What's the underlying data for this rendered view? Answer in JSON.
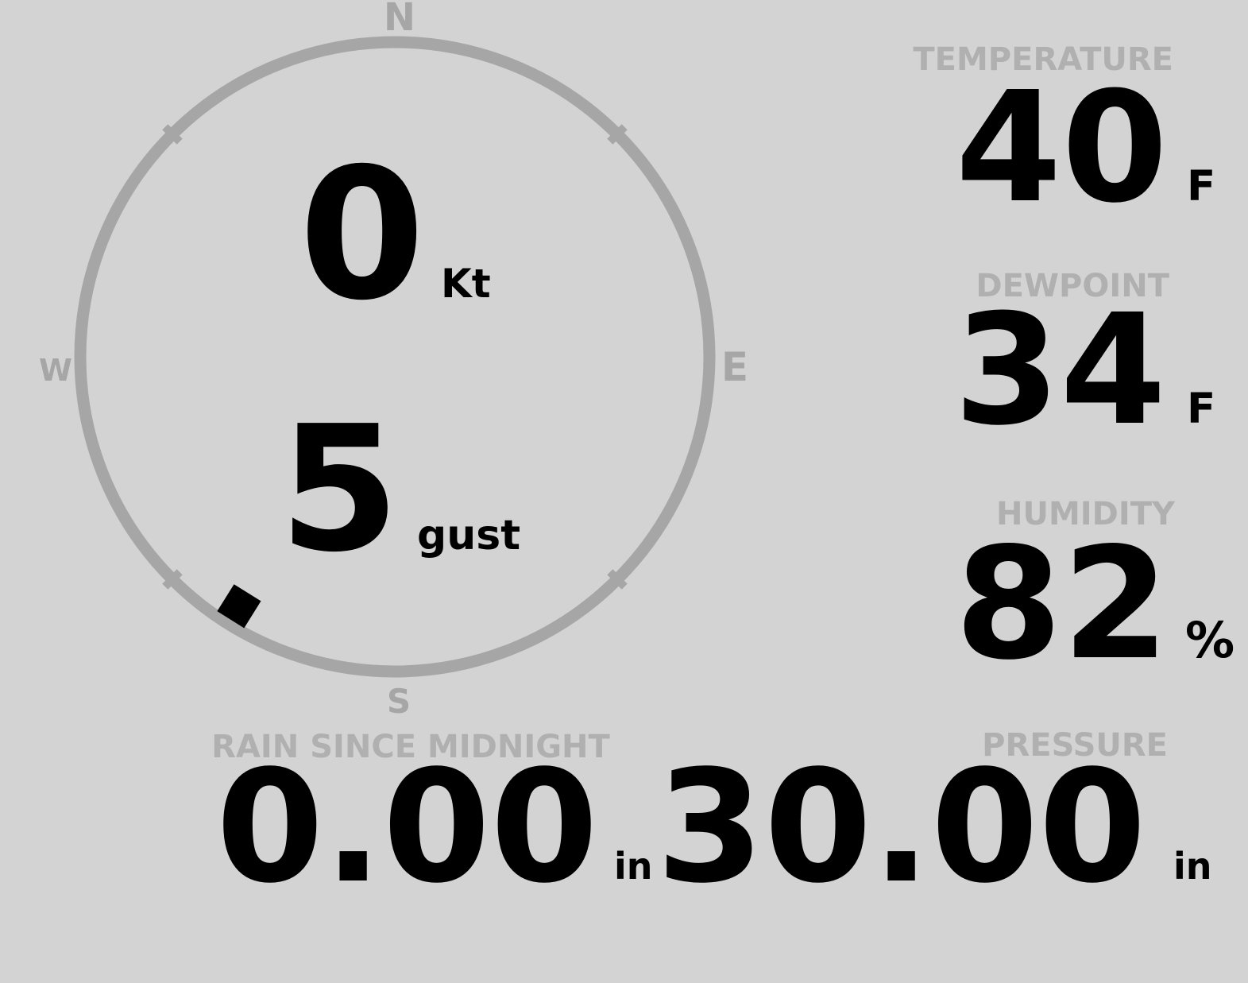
{
  "colors": {
    "background": "#d3d3d3",
    "muted_label": "#b0b0b0",
    "compass_gray": "#a6a6a6",
    "value_text": "#000000"
  },
  "wind": {
    "speed": "0",
    "speed_unit": "Kt",
    "gust": "5",
    "gust_unit": "gust",
    "direction_deg": 212,
    "compass_points": {
      "n": "N",
      "e": "E",
      "s": "S",
      "w": "W"
    },
    "tick_angles_deg": [
      45,
      135,
      225,
      315
    ]
  },
  "readouts": {
    "temperature": {
      "label": "TEMPERATURE",
      "value": "40",
      "unit": "F"
    },
    "dewpoint": {
      "label": "DEWPOINT",
      "value": "34",
      "unit": "F"
    },
    "humidity": {
      "label": "HUMIDITY",
      "value": "82",
      "unit": "%"
    },
    "rain_since_midnight": {
      "label": "RAIN SINCE MIDNIGHT",
      "value": "0.00",
      "unit": "in"
    },
    "pressure": {
      "label": "PRESSURE",
      "value": "30.00",
      "unit": "in"
    }
  }
}
